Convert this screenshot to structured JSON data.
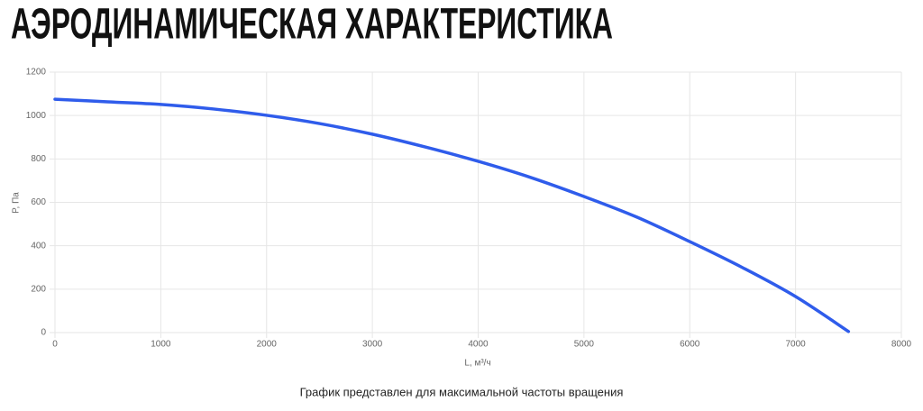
{
  "chart_data": {
    "type": "line",
    "title": "АЭРОДИНАМИЧЕСКАЯ ХАРАКТЕРИСТИКА",
    "x_label": "L, м³/ч",
    "y_label": "P, Па",
    "caption": "График представлен для максимальной частоты вращения",
    "x": [
      0,
      500,
      1000,
      1500,
      2000,
      2500,
      3000,
      3500,
      4000,
      4500,
      5000,
      5500,
      6000,
      6500,
      7000,
      7500
    ],
    "values": [
      1075,
      1063,
      1051,
      1030,
      1001,
      963,
      914,
      855,
      789,
      714,
      627,
      532,
      419,
      299,
      166,
      5
    ],
    "color": "#2f5ceb",
    "xlim": [
      0,
      8000
    ],
    "xticks": [
      0,
      1000,
      2000,
      3000,
      4000,
      5000,
      6000,
      7000,
      8000
    ],
    "ylim": [
      0,
      1200
    ],
    "yticks": [
      0,
      200,
      400,
      600,
      800,
      1000,
      1200
    ],
    "grid": true
  }
}
